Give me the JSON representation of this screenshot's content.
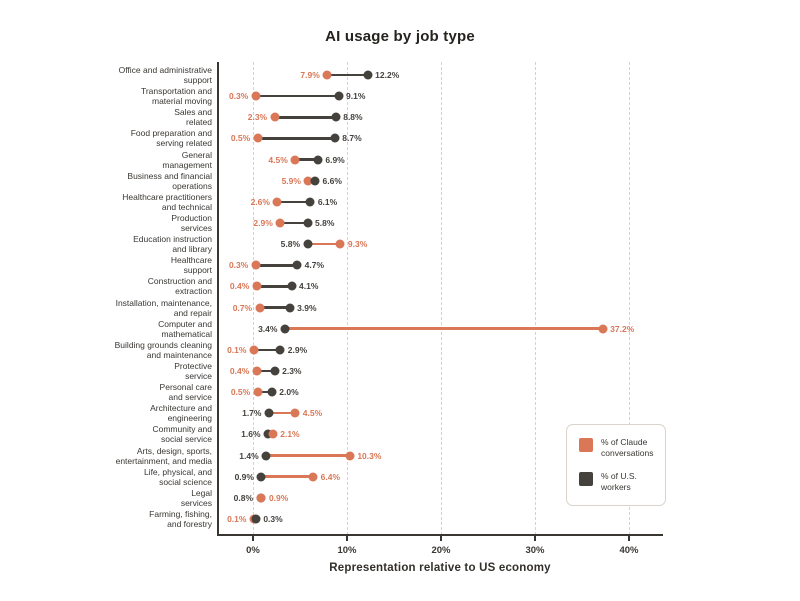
{
  "page": {
    "title": "AI usage by job type",
    "xlabel": "Representation relative to US economy"
  },
  "legend": {
    "items": [
      {
        "label": "% of Claude\nconversations",
        "color_key": "claude"
      },
      {
        "label": "% of U.S.\nworkers",
        "color_key": "workers"
      }
    ]
  },
  "colors": {
    "claude": "#D97757",
    "workers": "#45423E",
    "gridline": "#D7D1C8",
    "axis": "#3A3733",
    "text": "#3A3733",
    "background": "#FFFFFF"
  },
  "chart_data": {
    "type": "dumbbell",
    "title": "AI usage by job type",
    "xlabel": "Representation relative to US economy",
    "grid": "vertical-dashed",
    "legend_position": "lower-right",
    "xlim": [
      -3.7,
      43.5
    ],
    "x_ticks": [
      {
        "value": 0,
        "label": "0%"
      },
      {
        "value": 10,
        "label": "10%"
      },
      {
        "value": 20,
        "label": "20%"
      },
      {
        "value": 30,
        "label": "30%"
      },
      {
        "value": 40,
        "label": "40%"
      }
    ],
    "categories": [
      "Office and administrative\nsupport",
      "Transportation and\nmaterial moving",
      "Sales and\nrelated",
      "Food preparation and\nserving related",
      "General\nmanagement",
      "Business and financial\noperations",
      "Healthcare practitioners\nand technical",
      "Production\nservices",
      "Education instruction\nand library",
      "Healthcare\nsupport",
      "Construction and\nextraction",
      "Installation, maintenance,\nand repair",
      "Computer and\nmathematical",
      "Building grounds cleaning\nand maintenance",
      "Protective\nservice",
      "Personal care\nand service",
      "Architecture and\nengineering",
      "Community and\nsocial service",
      "Arts, design, sports,\nentertainment, and media",
      "Life, physical, and\nsocial science",
      "Legal\nservices",
      "Farming, fishing,\nand forestry"
    ],
    "series": [
      {
        "name": "% of Claude conversations",
        "color_key": "claude",
        "values": [
          7.9,
          0.3,
          2.3,
          0.5,
          4.5,
          5.9,
          2.6,
          2.9,
          9.3,
          0.3,
          0.4,
          0.7,
          37.2,
          0.1,
          0.4,
          0.5,
          4.5,
          2.1,
          10.3,
          6.4,
          0.9,
          0.1
        ],
        "labels": [
          "7.9%",
          "0.3%",
          "2.3%",
          "0.5%",
          "4.5%",
          "5.9%",
          "2.6%",
          "2.9%",
          "9.3%",
          "0.3%",
          "0.4%",
          "0.7%",
          "37.2%",
          "0.1%",
          "0.4%",
          "0.5%",
          "4.5%",
          "2.1%",
          "10.3%",
          "6.4%",
          "0.9%",
          "0.1%"
        ]
      },
      {
        "name": "% of U.S. workers",
        "color_key": "workers",
        "values": [
          12.2,
          9.1,
          8.8,
          8.7,
          6.9,
          6.6,
          6.1,
          5.8,
          5.8,
          4.7,
          4.1,
          3.9,
          3.4,
          2.9,
          2.3,
          2.0,
          1.7,
          1.6,
          1.4,
          0.9,
          0.8,
          0.3
        ],
        "labels": [
          "12.2%",
          "9.1%",
          "8.8%",
          "8.7%",
          "6.9%",
          "6.6%",
          "6.1%",
          "5.8%",
          "5.8%",
          "4.7%",
          "4.1%",
          "3.9%",
          "3.4%",
          "2.9%",
          "2.3%",
          "2.0%",
          "1.7%",
          "1.6%",
          "1.4%",
          "0.9%",
          "0.8%",
          "0.3%"
        ]
      }
    ]
  }
}
